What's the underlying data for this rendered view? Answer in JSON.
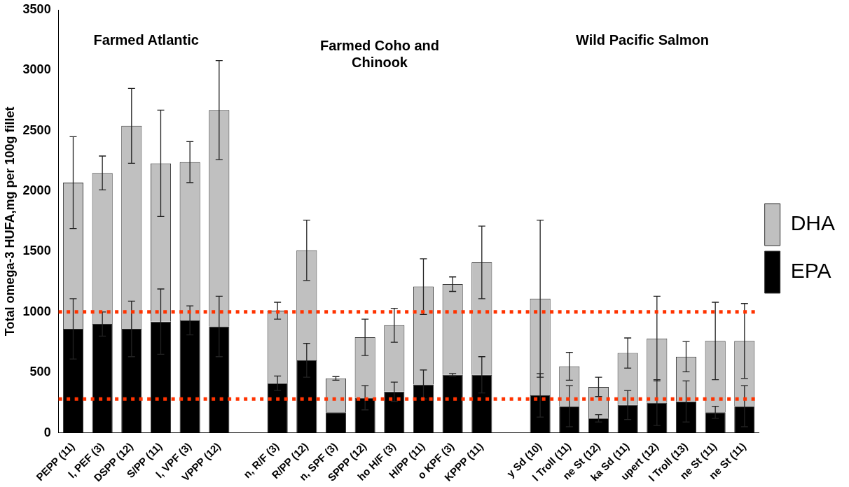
{
  "chart_data": {
    "type": "bar",
    "stacked": true,
    "ylabel": "Total omega-3 HUFA,mg per 100g fillet",
    "categories": [
      "PEPP (11)",
      "l, PEF (3)",
      "DSPP (12)",
      "S/PP (11)",
      "l, VPF (3)",
      "VPPP (12)",
      null,
      "n, R/F (3)",
      "R/PP (12)",
      "n, SPF (3)",
      "SPPP (12)",
      "ho H/F (3)",
      "H/PP (11)",
      "o KPF (3)",
      "KPPP (11)",
      null,
      "y Sd (10)",
      "l Troll (11)",
      "ne St (12)",
      "ka Sd (11)",
      "upert (12)",
      "l Troll (13)",
      "ne St (11)",
      "ne St (11)"
    ],
    "series": [
      {
        "name": "EPA",
        "color": "#000000",
        "values": [
          860,
          900,
          860,
          920,
          930,
          880,
          null,
          410,
          600,
          170,
          290,
          340,
          400,
          480,
          480,
          null,
          310,
          220,
          120,
          230,
          250,
          260,
          170,
          220
        ],
        "errors": [
          250,
          100,
          230,
          270,
          120,
          250,
          null,
          60,
          140,
          null,
          100,
          80,
          120,
          10,
          150,
          null,
          180,
          170,
          30,
          120,
          190,
          170,
          50,
          170
        ]
      },
      {
        "name": "DHA",
        "color": "#c0c0c0",
        "values": [
          1210,
          1250,
          1680,
          1310,
          1310,
          1790,
          null,
          600,
          910,
          280,
          500,
          550,
          810,
          750,
          930,
          null,
          800,
          330,
          260,
          430,
          530,
          370,
          590,
          540
        ],
        "errors": [
          380,
          140,
          310,
          440,
          170,
          410,
          null,
          70,
          250,
          15,
          150,
          140,
          230,
          60,
          300,
          null,
          650,
          115,
          80,
          125,
          350,
          125,
          320,
          310
        ]
      }
    ],
    "ylim": [
      0,
      3500
    ],
    "yticks": [
      0,
      500,
      1000,
      1500,
      2000,
      2500,
      3000,
      3500
    ],
    "grid": false,
    "legend": "right",
    "ref_lines": [
      {
        "axis": "y",
        "value": 1000,
        "color": "#ff3300",
        "line_style": "dotted"
      },
      {
        "axis": "y",
        "value": 280,
        "color": "#ff3300",
        "line_style": "dotted"
      }
    ],
    "annotations": [
      "Farmed Atlantic",
      "Farmed Coho and\nChinook",
      "Wild Pacific Salmon"
    ]
  }
}
